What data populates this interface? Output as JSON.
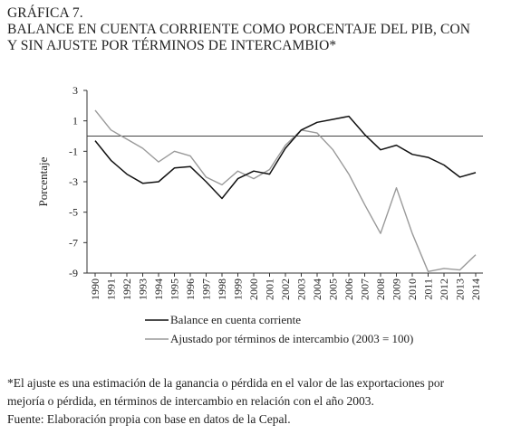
{
  "header": {
    "label": "GRÁFICA 7.",
    "title_line1": "BALANCE EN CUENTA CORRIENTE COMO PORCENTAJE DEL PIB, CON",
    "title_line2": "Y SIN AJUSTE POR TÉRMINOS DE INTERCAMBIO*"
  },
  "chart_data": {
    "type": "line",
    "ylabel": "Porcentaje",
    "ylim": [
      -9,
      3
    ],
    "yticks": [
      3,
      1,
      -1,
      -3,
      -5,
      -7,
      -9
    ],
    "reference_line": 0,
    "grid": false,
    "legend_placement": "bottom",
    "x": [
      1990,
      1991,
      1992,
      1993,
      1994,
      1995,
      1996,
      1997,
      1998,
      1999,
      2000,
      2001,
      2002,
      2003,
      2004,
      2005,
      2006,
      2007,
      2008,
      2009,
      2010,
      2011,
      2012,
      2013,
      2014
    ],
    "series": [
      {
        "name": "Balance en cuenta corriente",
        "color": "#111111",
        "values": [
          -0.3,
          -1.6,
          -2.5,
          -3.1,
          -3.0,
          -2.1,
          -2.0,
          -3.0,
          -4.1,
          -2.8,
          -2.3,
          -2.5,
          -0.8,
          0.4,
          0.9,
          1.1,
          1.3,
          0.1,
          -0.9,
          -0.6,
          -1.2,
          -1.4,
          -1.9,
          -2.7,
          -2.4
        ]
      },
      {
        "name": "Ajustado por términos de intercambio (2003 = 100)",
        "color": "#9a9a9a",
        "values": [
          1.7,
          0.4,
          -0.2,
          -0.8,
          -1.7,
          -1.0,
          -1.3,
          -2.7,
          -3.2,
          -2.3,
          -2.8,
          -2.2,
          -0.6,
          0.4,
          0.2,
          -0.9,
          -2.5,
          -4.5,
          -6.4,
          -3.4,
          -6.4,
          -8.9,
          -8.7,
          -8.8,
          -7.8
        ]
      }
    ]
  },
  "footer": {
    "note": "*El ajuste es una estimación de la ganancia o pérdida en el valor de las exportaciones por",
    "note_cont": "mejoría o pérdida, en términos de intercambio en relación con el año 2003.",
    "source": "Fuente: Elaboración propia con base en datos de la Cepal."
  }
}
